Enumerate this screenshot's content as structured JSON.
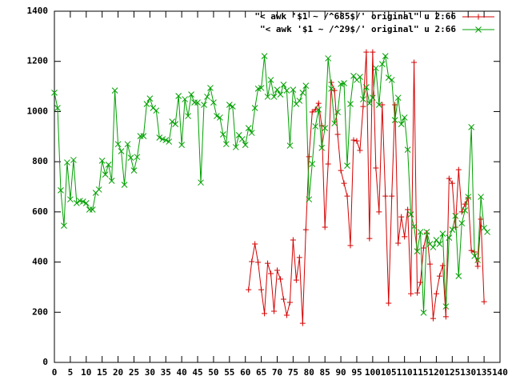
{
  "chart_data": {
    "type": "line",
    "marker": true,
    "legend": "top right",
    "xlim": [
      0,
      140
    ],
    "ylim": [
      0,
      1400
    ],
    "xticks": [
      0,
      5,
      10,
      15,
      20,
      25,
      30,
      35,
      40,
      45,
      50,
      55,
      60,
      65,
      70,
      75,
      80,
      85,
      90,
      95,
      100,
      105,
      110,
      115,
      120,
      125,
      130,
      135,
      140
    ],
    "yticks": [
      0,
      200,
      400,
      600,
      800,
      1000,
      1200,
      1400
    ],
    "series": [
      {
        "name": "\"< awk '$1 ~ /^685$/' original\" u 2:66",
        "color": "#d40000",
        "marker": "plus",
        "x": [
          61,
          62,
          63,
          64,
          65,
          66,
          67,
          68,
          69,
          70,
          71,
          72,
          73,
          74,
          75,
          76,
          77,
          78,
          79,
          80,
          81,
          82,
          83,
          84,
          85,
          86,
          87,
          88,
          89,
          90,
          91,
          92,
          93,
          94,
          95,
          96,
          97,
          98,
          99,
          100,
          101,
          102,
          103,
          104,
          105,
          106,
          107,
          108,
          109,
          110,
          111,
          112,
          113,
          114,
          115,
          116,
          117,
          118,
          119,
          120,
          121,
          122,
          123,
          124,
          125,
          126,
          127,
          128,
          129,
          130,
          131,
          132,
          133,
          134,
          135
        ],
        "values": [
          290,
          402,
          472,
          399,
          290,
          195,
          395,
          354,
          204,
          367,
          332,
          252,
          188,
          239,
          488,
          328,
          418,
          156,
          529,
          820,
          998,
          1008,
          1033,
          944,
          539,
          791,
          1116,
          1084,
          909,
          765,
          714,
          663,
          466,
          886,
          883,
          845,
          1020,
          1237,
          494,
          1237,
          775,
          600,
          1027,
          663,
          236,
          663,
          1027,
          475,
          580,
          501,
          609,
          274,
          1196,
          277,
          319,
          456,
          516,
          392,
          175,
          274,
          344,
          386,
          182,
          733,
          714,
          539,
          768,
          600,
          631,
          657,
          446,
          440,
          383,
          571,
          242
        ]
      },
      {
        "name": "\"< awk '$1 ~ /^29$/' original\" u 2:66",
        "color": "#00a000",
        "marker": "cross",
        "x": [
          0,
          1,
          2,
          3,
          4,
          5,
          6,
          7,
          8,
          9,
          10,
          11,
          12,
          13,
          14,
          15,
          16,
          17,
          18,
          19,
          20,
          21,
          22,
          23,
          24,
          25,
          26,
          27,
          28,
          29,
          30,
          31,
          32,
          33,
          34,
          35,
          36,
          37,
          38,
          39,
          40,
          41,
          42,
          43,
          44,
          45,
          46,
          47,
          48,
          49,
          50,
          51,
          52,
          53,
          54,
          55,
          56,
          57,
          58,
          59,
          60,
          61,
          62,
          63,
          64,
          65,
          66,
          67,
          68,
          69,
          70,
          71,
          72,
          73,
          74,
          75,
          76,
          77,
          78,
          79,
          80,
          81,
          82,
          83,
          84,
          85,
          86,
          87,
          88,
          89,
          90,
          91,
          92,
          93,
          94,
          95,
          96,
          97,
          98,
          99,
          100,
          101,
          102,
          103,
          104,
          105,
          106,
          107,
          108,
          109,
          110,
          111,
          112,
          113,
          114,
          115,
          116,
          117,
          118,
          119,
          120,
          121,
          122,
          123,
          124,
          125,
          126,
          127,
          128,
          129,
          130,
          131,
          132,
          133,
          134,
          135,
          136
        ],
        "values": [
          1075,
          1014,
          686,
          545,
          797,
          650,
          807,
          635,
          644,
          641,
          635,
          609,
          609,
          676,
          689,
          804,
          749,
          788,
          724,
          1084,
          870,
          842,
          708,
          870,
          816,
          765,
          819,
          902,
          902,
          1030,
          1052,
          1014,
          1004,
          896,
          890,
          886,
          880,
          960,
          950,
          1062,
          867,
          1049,
          982,
          1068,
          1036,
          1036,
          717,
          1027,
          1059,
          1094,
          1036,
          982,
          976,
          909,
          870,
          1027,
          1020,
          858,
          906,
          890,
          867,
          934,
          915,
          1014,
          1091,
          1094,
          1221,
          1059,
          1126,
          1059,
          1087,
          1068,
          1107,
          1084,
          864,
          1087,
          1030,
          1043,
          1075,
          1103,
          650,
          791,
          941,
          1008,
          855,
          934,
          1212,
          1091,
          953,
          998,
          1110,
          1113,
          784,
          1030,
          1142,
          1126,
          1138,
          1049,
          1097,
          1033,
          1055,
          1173,
          1027,
          1189,
          1221,
          1135,
          1126,
          966,
          1055,
          950,
          976,
          848,
          590,
          542,
          443,
          520,
          198,
          520,
          472,
          459,
          488,
          472,
          513,
          223,
          497,
          529,
          584,
          344,
          555,
          606,
          660,
          938,
          424,
          408,
          660,
          536,
          520
        ]
      }
    ]
  }
}
